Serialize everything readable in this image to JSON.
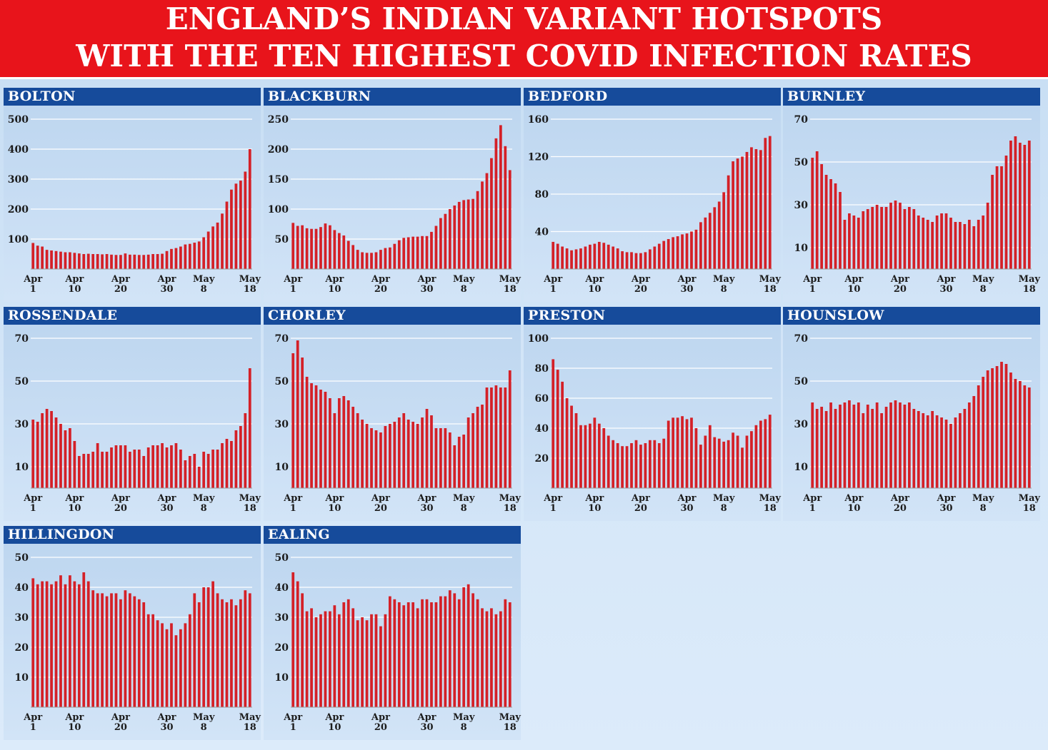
{
  "header": {
    "line1": "ENGLAND’S INDIAN VARIANT HOTSPOTS",
    "line2": "WITH THE TEN HIGHEST COVID INFECTION RATES"
  },
  "colors": {
    "bar": "#d42027",
    "header_bg": "#e8141b",
    "panel_header": "#164b9b",
    "grid": "#ffffff"
  },
  "x_ticks": [
    {
      "top": "Apr",
      "bottom": "1",
      "index": 0
    },
    {
      "top": "Apr",
      "bottom": "10",
      "index": 9
    },
    {
      "top": "Apr",
      "bottom": "20",
      "index": 19
    },
    {
      "top": "Apr",
      "bottom": "30",
      "index": 29
    },
    {
      "top": "May",
      "bottom": "8",
      "index": 37
    },
    {
      "top": "May",
      "bottom": "18",
      "index": 47
    }
  ],
  "chart_data": [
    {
      "type": "bar",
      "title": "BOLTON",
      "ylim": [
        0,
        500
      ],
      "yticks": [
        100,
        200,
        300,
        400,
        500
      ],
      "x_start": "2021-04-01",
      "x_end": "2021-05-18",
      "values": [
        87,
        78,
        75,
        64,
        62,
        60,
        58,
        56,
        56,
        54,
        52,
        50,
        51,
        50,
        50,
        49,
        50,
        48,
        47,
        47,
        52,
        48,
        48,
        47,
        47,
        48,
        50,
        50,
        51,
        60,
        67,
        70,
        75,
        82,
        84,
        88,
        92,
        106,
        125,
        142,
        155,
        185,
        225,
        265,
        285,
        295,
        325,
        400
      ]
    },
    {
      "type": "bar",
      "title": "BLACKBURN",
      "ylim": [
        0,
        250
      ],
      "yticks": [
        50,
        100,
        150,
        200,
        250
      ],
      "x_start": "2021-04-01",
      "x_end": "2021-05-18",
      "values": [
        77,
        72,
        73,
        68,
        67,
        67,
        70,
        76,
        73,
        65,
        60,
        56,
        47,
        40,
        32,
        28,
        27,
        27,
        28,
        32,
        35,
        36,
        42,
        48,
        52,
        53,
        54,
        54,
        55,
        55,
        62,
        72,
        85,
        92,
        100,
        106,
        112,
        115,
        116,
        117,
        130,
        146,
        160,
        185,
        218,
        240,
        205,
        165
      ]
    },
    {
      "type": "bar",
      "title": "BEDFORD",
      "ylim": [
        0,
        160
      ],
      "yticks": [
        40,
        80,
        120,
        160
      ],
      "x_start": "2021-04-01",
      "x_end": "2021-05-18",
      "values": [
        29,
        27,
        24,
        22,
        20,
        21,
        22,
        24,
        26,
        27,
        29,
        28,
        26,
        24,
        22,
        19,
        18,
        18,
        17,
        17,
        18,
        21,
        24,
        27,
        30,
        32,
        34,
        35,
        37,
        38,
        40,
        42,
        50,
        55,
        60,
        66,
        72,
        82,
        100,
        115,
        118,
        120,
        125,
        130,
        128,
        127,
        140,
        142
      ]
    },
    {
      "type": "bar",
      "title": "BURNLEY",
      "ylim": [
        0,
        70
      ],
      "yticks": [
        10,
        30,
        50,
        70
      ],
      "x_start": "2021-04-01",
      "x_end": "2021-05-18",
      "values": [
        52,
        55,
        49,
        44,
        42,
        40,
        36,
        23,
        26,
        25,
        24,
        27,
        28,
        29,
        30,
        29,
        29,
        31,
        32,
        31,
        28,
        29,
        28,
        25,
        24,
        23,
        22,
        25,
        26,
        26,
        24,
        22,
        22,
        21,
        23,
        20,
        23,
        25,
        31,
        44,
        48,
        48,
        53,
        60,
        62,
        59,
        58,
        60
      ]
    },
    {
      "type": "bar",
      "title": "ROSSENDALE",
      "ylim": [
        0,
        70
      ],
      "yticks": [
        10,
        30,
        50,
        70
      ],
      "x_start": "2021-04-01",
      "x_end": "2021-05-18",
      "values": [
        32,
        31,
        35,
        37,
        36,
        33,
        30,
        27,
        28,
        22,
        15,
        16,
        16,
        17,
        21,
        17,
        17,
        19,
        20,
        20,
        20,
        17,
        18,
        18,
        15,
        19,
        20,
        20,
        21,
        19,
        20,
        21,
        18,
        13,
        15,
        16,
        10,
        17,
        16,
        18,
        18,
        21,
        23,
        22,
        27,
        29,
        35,
        56
      ]
    },
    {
      "type": "bar",
      "title": "CHORLEY",
      "ylim": [
        0,
        70
      ],
      "yticks": [
        10,
        30,
        50,
        70
      ],
      "x_start": "2021-04-01",
      "x_end": "2021-05-18",
      "values": [
        63,
        69,
        61,
        52,
        49,
        48,
        46,
        45,
        42,
        35,
        42,
        43,
        41,
        38,
        35,
        32,
        30,
        28,
        27,
        26,
        29,
        30,
        31,
        33,
        35,
        32,
        31,
        30,
        33,
        37,
        34,
        28,
        28,
        28,
        26,
        20,
        24,
        25,
        33,
        35,
        38,
        39,
        47,
        47,
        48,
        47,
        47,
        55
      ]
    },
    {
      "type": "bar",
      "title": "PRESTON",
      "ylim": [
        0,
        100
      ],
      "yticks": [
        20,
        40,
        60,
        80,
        100
      ],
      "x_start": "2021-04-01",
      "x_end": "2021-05-18",
      "values": [
        86,
        79,
        71,
        60,
        55,
        50,
        42,
        42,
        43,
        47,
        43,
        40,
        35,
        32,
        30,
        28,
        28,
        30,
        32,
        29,
        30,
        32,
        32,
        30,
        33,
        45,
        47,
        47,
        48,
        46,
        47,
        40,
        29,
        35,
        42,
        34,
        33,
        31,
        32,
        37,
        35,
        27,
        35,
        38,
        42,
        45,
        46,
        49
      ]
    },
    {
      "type": "bar",
      "title": "HOUNSLOW",
      "ylim": [
        0,
        70
      ],
      "yticks": [
        10,
        30,
        50,
        70
      ],
      "x_start": "2021-04-01",
      "x_end": "2021-05-18",
      "values": [
        40,
        37,
        38,
        36,
        40,
        37,
        39,
        40,
        41,
        39,
        40,
        35,
        39,
        37,
        40,
        35,
        38,
        40,
        41,
        40,
        39,
        40,
        37,
        36,
        35,
        34,
        36,
        34,
        33,
        32,
        30,
        33,
        35,
        37,
        40,
        43,
        48,
        52,
        55,
        56,
        57,
        59,
        58,
        54,
        51,
        50,
        48,
        47
      ]
    },
    {
      "type": "bar",
      "title": "HILLINGDON",
      "ylim": [
        0,
        50
      ],
      "yticks": [
        10,
        20,
        30,
        40,
        50
      ],
      "x_start": "2021-04-01",
      "x_end": "2021-05-18",
      "values": [
        43,
        41,
        42,
        42,
        41,
        42,
        44,
        41,
        44,
        42,
        41,
        45,
        42,
        39,
        38,
        38,
        37,
        38,
        38,
        36,
        39,
        38,
        37,
        36,
        35,
        31,
        31,
        29,
        28,
        26,
        28,
        24,
        26,
        28,
        31,
        38,
        35,
        40,
        40,
        42,
        38,
        36,
        35,
        36,
        34,
        36,
        39,
        38
      ]
    },
    {
      "type": "bar",
      "title": "EALING",
      "ylim": [
        0,
        50
      ],
      "yticks": [
        10,
        20,
        30,
        40,
        50
      ],
      "x_start": "2021-04-01",
      "x_end": "2021-05-18",
      "values": [
        45,
        42,
        38,
        32,
        33,
        30,
        31,
        32,
        32,
        34,
        31,
        35,
        36,
        33,
        29,
        30,
        29,
        31,
        31,
        27,
        31,
        37,
        36,
        35,
        34,
        35,
        35,
        33,
        36,
        36,
        35,
        35,
        37,
        37,
        39,
        38,
        36,
        40,
        41,
        38,
        36,
        33,
        32,
        33,
        31,
        32,
        36,
        35
      ]
    }
  ]
}
